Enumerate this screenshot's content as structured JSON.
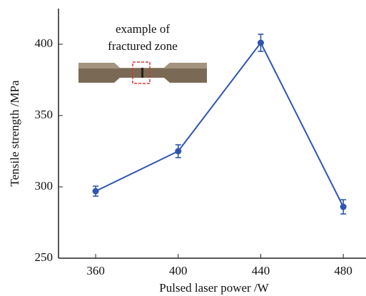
{
  "chart_data": {
    "type": "line",
    "xlabel": "Pulsed laser power /W",
    "ylabel": "Tensile strength /MPa",
    "annotation": [
      "example of",
      "fractured zone"
    ],
    "x": [
      360,
      400,
      440,
      480
    ],
    "series": [
      {
        "color": "#2f55b0",
        "values": [
          297,
          325,
          401,
          286
        ],
        "errors": [
          3.5,
          4.5,
          6,
          5
        ]
      }
    ],
    "xlim": [
      342,
      491
    ],
    "xticks": [
      360,
      400,
      440,
      480
    ],
    "ylim": [
      250,
      425
    ],
    "yticks": [
      250,
      300,
      350,
      400
    ]
  }
}
